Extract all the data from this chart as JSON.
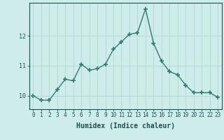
{
  "x": [
    0,
    1,
    2,
    3,
    4,
    5,
    6,
    7,
    8,
    9,
    10,
    11,
    12,
    13,
    14,
    15,
    16,
    17,
    18,
    19,
    20,
    21,
    22,
    23
  ],
  "y": [
    10.0,
    9.85,
    9.85,
    10.2,
    10.55,
    10.5,
    11.05,
    10.85,
    10.9,
    11.05,
    11.55,
    11.8,
    12.05,
    12.1,
    12.9,
    11.75,
    11.15,
    10.8,
    10.7,
    10.35,
    10.1,
    10.1,
    10.1,
    9.95
  ],
  "line_color": "#2d7d6e",
  "marker": "+",
  "markersize": 4,
  "markeredgewidth": 1.2,
  "linewidth": 1.0,
  "xlabel": "Humidex (Indice chaleur)",
  "xlim": [
    -0.5,
    23.5
  ],
  "ylim": [
    9.55,
    13.1
  ],
  "yticks": [
    10,
    11,
    12
  ],
  "xtick_labels": [
    "0",
    "1",
    "2",
    "3",
    "4",
    "5",
    "6",
    "7",
    "8",
    "9",
    "10",
    "11",
    "12",
    "13",
    "14",
    "15",
    "16",
    "17",
    "18",
    "19",
    "20",
    "21",
    "22",
    "23"
  ],
  "bg_color": "#ceecea",
  "grid_color": "#b8d8d4",
  "font_color": "#1e5050",
  "tick_fontsize": 5.5,
  "xlabel_fontsize": 7.0
}
